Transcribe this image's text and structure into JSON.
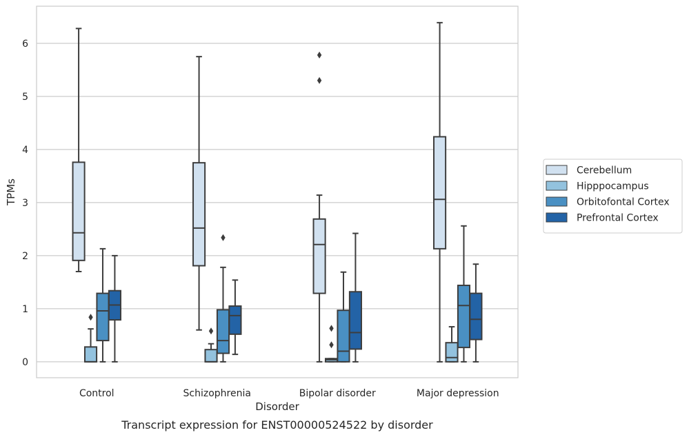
{
  "chart_data": {
    "type": "box",
    "title": "",
    "caption": "Transcript expression for ENST00000524522 by disorder",
    "xlabel": "Disorder",
    "ylabel": "TPMs",
    "ylim": [
      -0.3,
      6.7
    ],
    "yticks": [
      0,
      1,
      2,
      3,
      4,
      5,
      6
    ],
    "grid": true,
    "legend_position": "right",
    "categories": [
      "Control",
      "Schizophrenia",
      "Bipolar disorder",
      "Major depression"
    ],
    "series": [
      {
        "name": "Cerebellum",
        "color": "#d1e1f0",
        "boxes": [
          {
            "whisker_low": 1.7,
            "q1": 1.91,
            "median": 2.43,
            "q3": 3.76,
            "whisker_high": 6.28,
            "outliers": []
          },
          {
            "whisker_low": 0.6,
            "q1": 1.81,
            "median": 2.52,
            "q3": 3.75,
            "whisker_high": 5.75,
            "outliers": []
          },
          {
            "whisker_low": 0.0,
            "q1": 1.29,
            "median": 2.21,
            "q3": 2.69,
            "whisker_high": 3.14,
            "outliers": [
              5.3,
              5.78
            ]
          },
          {
            "whisker_low": 0.0,
            "q1": 2.13,
            "median": 3.06,
            "q3": 4.24,
            "whisker_high": 6.39,
            "outliers": []
          }
        ]
      },
      {
        "name": "Hipppocampus",
        "color": "#93c2de",
        "boxes": [
          {
            "whisker_low": 0.0,
            "q1": 0.0,
            "median": 0.0,
            "q3": 0.28,
            "whisker_high": 0.62,
            "outliers": [
              0.84
            ]
          },
          {
            "whisker_low": 0.0,
            "q1": 0.0,
            "median": 0.0,
            "q3": 0.23,
            "whisker_high": 0.34,
            "outliers": [
              0.58
            ]
          },
          {
            "whisker_low": 0.0,
            "q1": 0.0,
            "median": 0.04,
            "q3": 0.06,
            "whisker_high": 0.06,
            "outliers": [
              0.32,
              0.63
            ]
          },
          {
            "whisker_low": 0.0,
            "q1": 0.0,
            "median": 0.08,
            "q3": 0.36,
            "whisker_high": 0.66,
            "outliers": []
          }
        ]
      },
      {
        "name": "Orbitofontal Cortex",
        "color": "#4a90c3",
        "boxes": [
          {
            "whisker_low": 0.0,
            "q1": 0.4,
            "median": 0.96,
            "q3": 1.29,
            "whisker_high": 2.13,
            "outliers": []
          },
          {
            "whisker_low": 0.0,
            "q1": 0.16,
            "median": 0.4,
            "q3": 0.98,
            "whisker_high": 1.78,
            "outliers": [
              2.34
            ]
          },
          {
            "whisker_low": 0.0,
            "q1": 0.0,
            "median": 0.2,
            "q3": 0.97,
            "whisker_high": 1.69,
            "outliers": []
          },
          {
            "whisker_low": 0.0,
            "q1": 0.27,
            "median": 1.06,
            "q3": 1.44,
            "whisker_high": 2.56,
            "outliers": []
          }
        ]
      },
      {
        "name": "Prefrontal Cortex",
        "color": "#2363a6",
        "boxes": [
          {
            "whisker_low": 0.0,
            "q1": 0.79,
            "median": 1.07,
            "q3": 1.34,
            "whisker_high": 2.0,
            "outliers": []
          },
          {
            "whisker_low": 0.14,
            "q1": 0.52,
            "median": 0.87,
            "q3": 1.05,
            "whisker_high": 1.54,
            "outliers": []
          },
          {
            "whisker_low": 0.0,
            "q1": 0.24,
            "median": 0.55,
            "q3": 1.32,
            "whisker_high": 2.42,
            "outliers": []
          },
          {
            "whisker_low": 0.0,
            "q1": 0.42,
            "median": 0.8,
            "q3": 1.29,
            "whisker_high": 1.84,
            "outliers": []
          }
        ]
      }
    ]
  }
}
